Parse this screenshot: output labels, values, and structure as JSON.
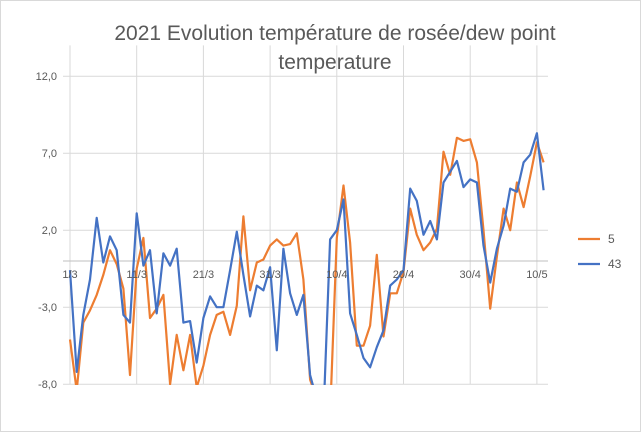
{
  "chart_data": {
    "type": "line",
    "title_lines": [
      "2021 Evolution température de rosée/dew point",
      "temperature"
    ],
    "xlabel": "",
    "ylabel": "",
    "ylim": [
      -8,
      14
    ],
    "y_ticks": [
      12,
      7,
      2,
      -3,
      -8
    ],
    "y_tick_labels": [
      "12,0",
      "7,0",
      "2,0",
      "-3,0",
      "-8,0"
    ],
    "x_start": "1/3",
    "x_count": 72,
    "x_ticks": [
      {
        "index": 0,
        "label": "1/3"
      },
      {
        "index": 10,
        "label": "11/3"
      },
      {
        "index": 20,
        "label": "21/3"
      },
      {
        "index": 30,
        "label": "31/3"
      },
      {
        "index": 40,
        "label": "10/4"
      },
      {
        "index": 50,
        "label": "20/4"
      },
      {
        "index": 60,
        "label": "30/4"
      },
      {
        "index": 70,
        "label": "10/5"
      }
    ],
    "grid": true,
    "legend_position": "right",
    "series": [
      {
        "name": "5",
        "color": "#ed7d31",
        "values": [
          -5.1,
          -8.4,
          -4,
          -3.2,
          -2.2,
          -0.9,
          0.7,
          -0.2,
          -1.8,
          -7.4,
          -0.5,
          1.5,
          -3.7,
          -3.1,
          -2.2,
          -8.0,
          -4.8,
          -7.1,
          -4.8,
          -8.2,
          -6.8,
          -4.8,
          -3.5,
          -3.3,
          -4.8,
          -2.9,
          2.9,
          -1.9,
          -0.1,
          0.1,
          1.0,
          1.4,
          1.0,
          1.1,
          1.8,
          -1.2,
          -7.7,
          -9,
          -10,
          -10,
          1.5,
          4.9,
          1.2,
          -5.5,
          -5.5,
          -4.2,
          0.4,
          -4.9,
          -2.1,
          -2.1,
          -0.7,
          3.4,
          1.7,
          0.7,
          1.2,
          2.1,
          7.1,
          5.6,
          8.0,
          7.8,
          7.9,
          6.4,
          2.0,
          -3.1,
          0.3,
          3.4,
          2.0,
          5.1,
          3.5,
          5.5,
          7.7,
          6.4
        ]
      },
      {
        "name": "43",
        "color": "#4472c4",
        "values": [
          -0.6,
          -7.2,
          -3.5,
          -1.2,
          2.8,
          -0.1,
          1.6,
          0.7,
          -3.5,
          -4,
          3.1,
          -0.3,
          0.7,
          -3.4,
          0.5,
          -0.3,
          0.8,
          -4,
          -3.9,
          -6.6,
          -3.7,
          -2.3,
          -3,
          -3,
          -0.6,
          1.9,
          -0.9,
          -3.6,
          -1.6,
          -1.9,
          -0.4,
          -5.8,
          0.8,
          -2.1,
          -3.5,
          -2.2,
          -7.4,
          -9,
          -10,
          1.4,
          2.0,
          4.0,
          -3.4,
          -4.8,
          -6.3,
          -6.9,
          -5.6,
          -4.5,
          -1.6,
          -1.2,
          -0.6,
          4.7,
          3.9,
          1.7,
          2.6,
          1.4,
          5.1,
          5.8,
          6.5,
          4.8,
          5.3,
          5.1,
          1.0,
          -1.4,
          0.8,
          2.3,
          4.7,
          4.5,
          6.4,
          6.9,
          8.3,
          4.6
        ]
      }
    ]
  }
}
